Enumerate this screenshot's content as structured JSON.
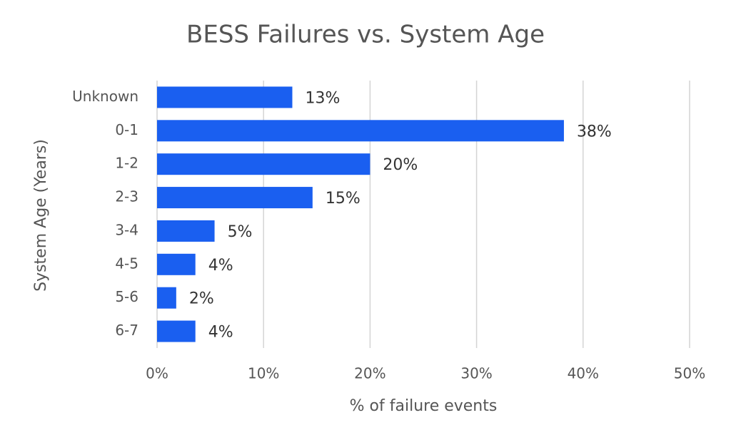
{
  "chart_data": {
    "type": "hbar",
    "title": "BESS Failures vs. System Age",
    "x_label": "% of failure events",
    "y_label": "System Age (Years)",
    "categories": [
      "Unknown",
      "0-1",
      "1-2",
      "2-3",
      "3-4",
      "4-5",
      "5-6",
      "6-7"
    ],
    "values": [
      12.7,
      38.2,
      20,
      14.6,
      5.4,
      3.6,
      1.8,
      3.6
    ],
    "value_labels": [
      "13%",
      "38%",
      "20%",
      "15%",
      "5%",
      "4%",
      "2%",
      "4%"
    ],
    "color": "#1a5ff0",
    "xlim": [
      0,
      50
    ],
    "xticks": [
      {
        "value": 0,
        "label": "0%"
      },
      {
        "value": 10,
        "label": "10%"
      },
      {
        "value": 20,
        "label": "20%"
      },
      {
        "value": 30,
        "label": "30%"
      },
      {
        "value": 40,
        "label": "40%"
      },
      {
        "value": 50,
        "label": "50%"
      }
    ],
    "grid": true
  }
}
